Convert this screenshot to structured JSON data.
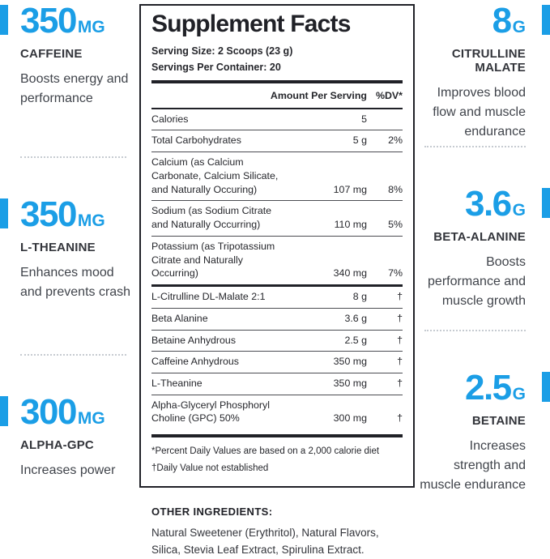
{
  "colors": {
    "accent": "#1b9ee6"
  },
  "highlights": {
    "left": [
      {
        "amount": "350",
        "unit": "MG",
        "name": "CAFFEINE",
        "description": "Boosts energy and performance"
      },
      {
        "amount": "350",
        "unit": "MG",
        "name": "L-THEANINE",
        "description": "Enhances mood and prevents crash"
      },
      {
        "amount": "300",
        "unit": "MG",
        "name": "ALPHA-GPC",
        "description": "Increases power"
      }
    ],
    "right": [
      {
        "amount": "8",
        "unit": "G",
        "name": "CITRULLINE MALATE",
        "description": "Improves blood flow and muscle endurance"
      },
      {
        "amount": "3.6",
        "unit": "G",
        "name": "BETA-ALANINE",
        "description": "Boosts performance and muscle growth"
      },
      {
        "amount": "2.5",
        "unit": "G",
        "name": "BETAINE",
        "description": "Increases strength and muscle endurance"
      }
    ]
  },
  "panel": {
    "title": "Supplement Facts",
    "serving_size": "Serving Size: 2 Scoops (23 g)",
    "servings_per_container": "Servings Per Container: 20",
    "columns": {
      "amount": "Amount Per Serving",
      "dv": "%DV*"
    },
    "rows": [
      {
        "label": "Calories",
        "amount": "5",
        "dv": ""
      },
      {
        "label": "Total Carbohydrates",
        "amount": "5 g",
        "dv": "2%"
      },
      {
        "label": "Calcium (as Calcium Carbonate, Calcium Silicate, and Naturally Occuring)",
        "amount": "107 mg",
        "dv": "8%"
      },
      {
        "label": "Sodium (as Sodium Citrate and Naturally Occurring)",
        "amount": "110 mg",
        "dv": "5%"
      },
      {
        "label": "Potassium (as Tripotassium Citrate and Naturally Occurring)",
        "amount": "340 mg",
        "dv": "7%",
        "section_end": true
      },
      {
        "label": "L-Citrulline DL-Malate 2:1",
        "amount": "8 g",
        "dv": "†"
      },
      {
        "label": "Beta Alanine",
        "amount": "3.6 g",
        "dv": "†"
      },
      {
        "label": "Betaine Anhydrous",
        "amount": "2.5 g",
        "dv": "†"
      },
      {
        "label": "Caffeine Anhydrous",
        "amount": "350 mg",
        "dv": "†"
      },
      {
        "label": "L-Theanine",
        "amount": "350 mg",
        "dv": "†"
      },
      {
        "label": "Alpha-Glyceryl Phosphoryl Choline (GPC) 50%",
        "amount": "300 mg",
        "dv": "†"
      }
    ],
    "footnotes": [
      "*Percent Daily Values are based on a 2,000 calorie diet",
      "†Daily Value not established"
    ]
  },
  "other_ingredients": {
    "heading": "OTHER INGREDIENTS:",
    "text": "Natural Sweetener (Erythritol), Natural Flavors, Silica, Stevia Leaf Extract, Spirulina Extract."
  }
}
